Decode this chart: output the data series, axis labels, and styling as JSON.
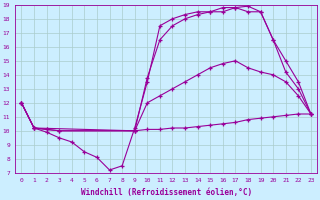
{
  "bg_color": "#cceeff",
  "line_color": "#990099",
  "grid_color": "#aacccc",
  "xlabel": "Windchill (Refroidissement éolien,°C)",
  "xlim": [
    -0.5,
    23.5
  ],
  "ylim": [
    7,
    19
  ],
  "yticks": [
    7,
    8,
    9,
    10,
    11,
    12,
    13,
    14,
    15,
    16,
    17,
    18,
    19
  ],
  "xticks": [
    0,
    1,
    2,
    3,
    4,
    5,
    6,
    7,
    8,
    9,
    10,
    11,
    12,
    13,
    14,
    15,
    16,
    17,
    18,
    19,
    20,
    21,
    22,
    23
  ],
  "series": [
    {
      "x": [
        0,
        1,
        2,
        3,
        9,
        10,
        11,
        12,
        13,
        14,
        15,
        16,
        17,
        18,
        19,
        20,
        21,
        22,
        23
      ],
      "y": [
        12,
        10.2,
        10.1,
        10.0,
        10.0,
        10.1,
        10.1,
        10.2,
        10.2,
        10.3,
        10.4,
        10.5,
        10.6,
        10.8,
        10.9,
        11.0,
        11.1,
        11.2,
        11.2
      ]
    },
    {
      "x": [
        0,
        1,
        2,
        3,
        9,
        10,
        11,
        12,
        13,
        14,
        15,
        16,
        17,
        18,
        19,
        20,
        21,
        22,
        23
      ],
      "y": [
        12,
        10.2,
        10.1,
        10.0,
        10.0,
        12.0,
        12.5,
        13.0,
        13.5,
        14.0,
        14.5,
        14.8,
        15.0,
        14.5,
        14.2,
        14.0,
        13.5,
        12.5,
        11.2
      ]
    },
    {
      "x": [
        0,
        1,
        2,
        3,
        4,
        5,
        6,
        7,
        8,
        9,
        10,
        11,
        12,
        13,
        14,
        15,
        16,
        17,
        18,
        19,
        20,
        21,
        22,
        23
      ],
      "y": [
        12,
        10.2,
        9.9,
        9.5,
        9.2,
        8.5,
        8.1,
        7.2,
        7.5,
        10.2,
        13.5,
        17.5,
        18.0,
        18.3,
        18.5,
        18.5,
        18.8,
        18.8,
        18.5,
        18.5,
        16.5,
        14.2,
        13.0,
        11.2
      ]
    },
    {
      "x": [
        0,
        1,
        9,
        10,
        11,
        12,
        13,
        14,
        15,
        16,
        17,
        18,
        19,
        20,
        21,
        22,
        23
      ],
      "y": [
        12,
        10.2,
        10.0,
        13.8,
        16.5,
        17.5,
        18.0,
        18.3,
        18.5,
        18.5,
        18.8,
        18.9,
        18.5,
        16.5,
        15.0,
        13.5,
        11.2
      ]
    }
  ]
}
